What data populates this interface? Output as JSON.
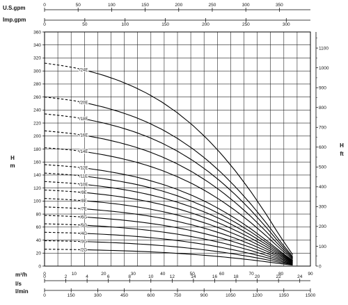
{
  "chart_data": {
    "type": "line",
    "axes": {
      "left": {
        "label_top": "H",
        "label_bottom": "m",
        "min": 0,
        "max": 360,
        "ticks": [
          0,
          20,
          40,
          60,
          80,
          100,
          120,
          140,
          160,
          180,
          200,
          220,
          240,
          260,
          280,
          300,
          320,
          340,
          360
        ]
      },
      "right": {
        "label_top": "H",
        "label_bottom": "ft",
        "min": 0,
        "max": 1181,
        "ticks": [
          0,
          100,
          200,
          300,
          400,
          500,
          600,
          700,
          800,
          900,
          1000,
          1100
        ]
      },
      "bottom": [
        {
          "label": "m³/h",
          "max": 90,
          "ticks": [
            0,
            10,
            20,
            30,
            40,
            50,
            60,
            70,
            80,
            90
          ]
        },
        {
          "label": "l/s",
          "max": 25,
          "ticks": [
            0,
            2,
            4,
            6,
            8,
            10,
            12,
            14,
            16,
            18,
            20,
            22,
            24
          ]
        },
        {
          "label": "l/min",
          "max": 1500,
          "ticks": [
            0,
            150,
            300,
            450,
            600,
            750,
            900,
            1050,
            1200,
            1350,
            1500
          ]
        }
      ],
      "top": [
        {
          "label": "U.S.gpm",
          "max": 396.3,
          "ticks": [
            0,
            50,
            100,
            150,
            200,
            250,
            300,
            350
          ]
        },
        {
          "label": "Imp.gpm",
          "max": 330,
          "ticks": [
            0,
            50,
            100,
            150,
            200,
            250,
            300
          ]
        }
      ]
    },
    "grid": true,
    "curve_shape": {
      "x_start": 0,
      "x_end": 84,
      "x_solid_from": 13,
      "x_points": [
        0,
        5,
        10,
        15,
        20,
        25,
        30,
        35,
        40,
        45,
        50,
        55,
        60,
        65,
        70,
        75,
        80,
        84
      ],
      "head_fraction": [
        1.0,
        0.99,
        0.978,
        0.961,
        0.94,
        0.915,
        0.885,
        0.849,
        0.806,
        0.755,
        0.696,
        0.628,
        0.55,
        0.462,
        0.364,
        0.256,
        0.141,
        0.056
      ]
    },
    "series": [
      {
        "name": "/2G",
        "values": [
          26.0,
          25.7,
          25.4,
          25.0,
          24.4,
          23.8,
          23.0,
          22.1,
          21.0,
          19.6,
          18.1,
          16.3,
          14.3,
          12.0,
          9.5,
          6.7,
          3.7,
          1.5
        ]
      },
      {
        "name": "/3G",
        "values": [
          39.0,
          38.6,
          38.1,
          37.5,
          36.7,
          35.7,
          34.5,
          33.1,
          31.4,
          29.4,
          27.1,
          24.5,
          21.5,
          18.0,
          14.2,
          10.0,
          5.5,
          2.2
        ]
      },
      {
        "name": "/4G",
        "values": [
          52.0,
          51.5,
          50.9,
          50.0,
          48.9,
          47.6,
          46.0,
          44.1,
          41.9,
          39.3,
          36.2,
          32.7,
          28.6,
          24.0,
          18.9,
          13.3,
          7.3,
          2.9
        ]
      },
      {
        "name": "/5G",
        "values": [
          65.0,
          64.4,
          63.6,
          62.5,
          61.1,
          59.5,
          57.5,
          55.2,
          52.4,
          49.1,
          45.2,
          40.8,
          35.8,
          30.0,
          23.7,
          16.6,
          9.2,
          3.6
        ]
      },
      {
        "name": "/6G",
        "values": [
          78.0,
          77.2,
          76.3,
          75.0,
          73.3,
          71.4,
          69.0,
          66.2,
          62.9,
          58.9,
          54.3,
          49.0,
          42.9,
          36.0,
          28.4,
          20.0,
          11.0,
          4.4
        ]
      },
      {
        "name": "/7E",
        "values": [
          91.0,
          90.1,
          89.0,
          87.5,
          85.5,
          83.3,
          80.5,
          77.3,
          73.3,
          68.7,
          63.3,
          57.1,
          50.0,
          42.0,
          33.1,
          23.3,
          12.8,
          5.1
        ]
      },
      {
        "name": "/8E",
        "values": [
          104.0,
          103.0,
          101.7,
          99.9,
          97.8,
          95.2,
          92.0,
          88.3,
          83.8,
          78.5,
          72.4,
          65.3,
          57.2,
          48.0,
          37.9,
          26.6,
          14.7,
          5.8
        ]
      },
      {
        "name": "/9E",
        "values": [
          117.0,
          115.8,
          114.4,
          112.4,
          110.0,
          107.1,
          103.5,
          99.3,
          94.3,
          88.3,
          81.4,
          73.5,
          64.4,
          54.1,
          42.6,
          30.0,
          16.5,
          6.6
        ]
      },
      {
        "name": "/10E",
        "values": [
          130.0,
          128.7,
          127.1,
          124.9,
          122.2,
          119.0,
          115.1,
          110.4,
          104.8,
          98.2,
          90.5,
          81.6,
          71.5,
          60.1,
          47.3,
          33.3,
          18.3,
          7.3
        ]
      },
      {
        "name": "/11E",
        "values": [
          143.0,
          141.6,
          139.9,
          137.4,
          134.4,
          130.8,
          126.6,
          121.4,
          115.3,
          108.0,
          99.5,
          89.8,
          78.7,
          66.1,
          52.1,
          36.6,
          20.2,
          8.0
        ]
      },
      {
        "name": "/12E",
        "values": [
          156.0,
          154.4,
          152.6,
          149.9,
          146.6,
          142.7,
          138.1,
          132.4,
          125.7,
          117.8,
          108.6,
          98.0,
          85.8,
          72.1,
          56.8,
          39.9,
          22.0,
          8.7
        ]
      },
      {
        "name": "/14E",
        "values": [
          182.0,
          180.2,
          178.0,
          174.9,
          171.1,
          166.5,
          161.1,
          154.5,
          146.7,
          137.4,
          126.7,
          114.3,
          100.1,
          84.1,
          66.2,
          46.6,
          25.7,
          10.2
        ]
      },
      {
        "name": "/16E",
        "values": [
          208.0,
          205.9,
          203.4,
          199.9,
          195.5,
          190.3,
          184.1,
          176.6,
          167.6,
          157.0,
          144.8,
          130.6,
          114.4,
          96.1,
          75.7,
          53.2,
          29.3,
          11.6
        ]
      },
      {
        "name": "/18F",
        "values": [
          234.0,
          231.7,
          228.9,
          224.9,
          220.0,
          214.1,
          207.1,
          198.7,
          188.6,
          176.7,
          162.9,
          147.0,
          128.7,
          108.1,
          85.2,
          59.9,
          33.0,
          13.1
        ]
      },
      {
        "name": "/20E",
        "values": [
          260.0,
          257.4,
          254.3,
          249.9,
          244.4,
          237.9,
          230.1,
          220.7,
          209.6,
          196.3,
          181.0,
          163.3,
          143.0,
          120.1,
          94.6,
          66.6,
          36.7,
          14.6
        ]
      },
      {
        "name": "/24E",
        "values": [
          312.0,
          308.9,
          305.1,
          299.8,
          293.3,
          285.5,
          276.1,
          264.9,
          251.5,
          235.6,
          217.2,
          195.9,
          171.6,
          144.1,
          113.6,
          79.9,
          44.0,
          17.5
        ]
      }
    ]
  }
}
